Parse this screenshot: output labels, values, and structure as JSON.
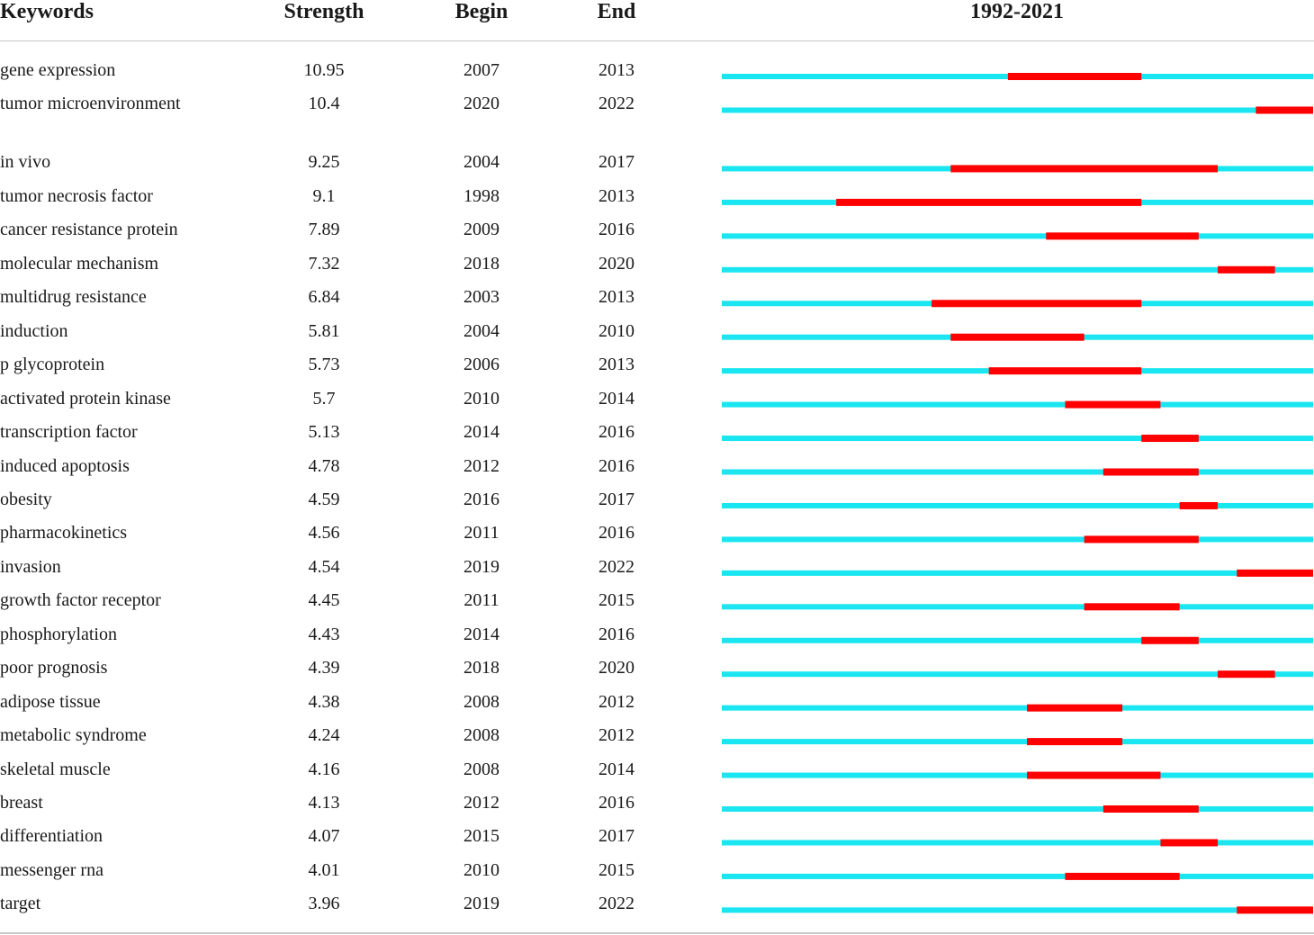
{
  "headers": {
    "keywords": "Keywords",
    "strength": "Strength",
    "begin": "Begin",
    "end": "End",
    "period": "1992-2021"
  },
  "chart_data": {
    "type": "table",
    "title": "1992-2021",
    "timeline_range": [
      1992,
      2022
    ],
    "colors": {
      "baseline": "#19e6f0",
      "burst": "#ff0000"
    },
    "columns": [
      "Keywords",
      "Strength",
      "Begin",
      "End"
    ],
    "rows": [
      {
        "keyword": "gene expression",
        "strength": "10.95",
        "begin": "2007",
        "end": "2013"
      },
      {
        "keyword": "tumor microenvironment",
        "strength": "10.4",
        "begin": "2020",
        "end": "2022"
      },
      {
        "keyword": "in vivo",
        "strength": "9.25",
        "begin": "2004",
        "end": "2017"
      },
      {
        "keyword": "tumor necrosis factor",
        "strength": "9.1",
        "begin": "1998",
        "end": "2013"
      },
      {
        "keyword": "cancer resistance protein",
        "strength": "7.89",
        "begin": "2009",
        "end": "2016"
      },
      {
        "keyword": "molecular mechanism",
        "strength": "7.32",
        "begin": "2018",
        "end": "2020"
      },
      {
        "keyword": "multidrug resistance",
        "strength": "6.84",
        "begin": "2003",
        "end": "2013"
      },
      {
        "keyword": "induction",
        "strength": "5.81",
        "begin": "2004",
        "end": "2010"
      },
      {
        "keyword": "p glycoprotein",
        "strength": "5.73",
        "begin": "2006",
        "end": "2013"
      },
      {
        "keyword": "activated protein kinase",
        "strength": "5.7",
        "begin": "2010",
        "end": "2014"
      },
      {
        "keyword": "transcription factor",
        "strength": "5.13",
        "begin": "2014",
        "end": "2016"
      },
      {
        "keyword": "induced apoptosis",
        "strength": "4.78",
        "begin": "2012",
        "end": "2016"
      },
      {
        "keyword": "obesity",
        "strength": "4.59",
        "begin": "2016",
        "end": "2017"
      },
      {
        "keyword": "pharmacokinetics",
        "strength": "4.56",
        "begin": "2011",
        "end": "2016"
      },
      {
        "keyword": "invasion",
        "strength": "4.54",
        "begin": "2019",
        "end": "2022"
      },
      {
        "keyword": "growth factor receptor",
        "strength": "4.45",
        "begin": "2011",
        "end": "2015"
      },
      {
        "keyword": "phosphorylation",
        "strength": "4.43",
        "begin": "2014",
        "end": "2016"
      },
      {
        "keyword": "poor prognosis",
        "strength": "4.39",
        "begin": "2018",
        "end": "2020"
      },
      {
        "keyword": "adipose tissue",
        "strength": "4.38",
        "begin": "2008",
        "end": "2012"
      },
      {
        "keyword": "metabolic syndrome",
        "strength": "4.24",
        "begin": "2008",
        "end": "2012"
      },
      {
        "keyword": "skeletal muscle",
        "strength": "4.16",
        "begin": "2008",
        "end": "2014"
      },
      {
        "keyword": "breast",
        "strength": "4.13",
        "begin": "2012",
        "end": "2016"
      },
      {
        "keyword": "differentiation",
        "strength": "4.07",
        "begin": "2015",
        "end": "2017"
      },
      {
        "keyword": "messenger rna",
        "strength": "4.01",
        "begin": "2010",
        "end": "2015"
      },
      {
        "keyword": "target",
        "strength": "3.96",
        "begin": "2019",
        "end": "2022"
      }
    ]
  }
}
